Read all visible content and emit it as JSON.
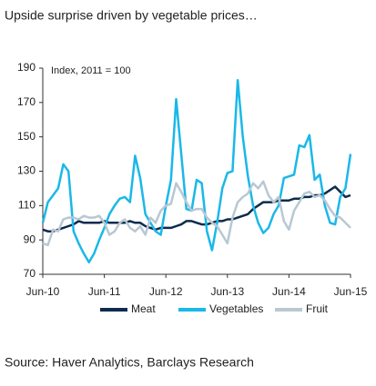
{
  "chart_data": {
    "type": "line",
    "title": "Upside surprise driven by vegetable prices…",
    "annotation": "Index, 2011 = 100",
    "source": "Source: Haver Analytics, Barclays Research",
    "categories": [
      "Jun-10",
      null,
      null,
      null,
      null,
      null,
      null,
      null,
      null,
      null,
      null,
      null,
      "Jun-11",
      null,
      null,
      null,
      null,
      null,
      null,
      null,
      null,
      null,
      null,
      null,
      "Jun-12",
      null,
      null,
      null,
      null,
      null,
      null,
      null,
      null,
      null,
      null,
      null,
      "Jun-13",
      null,
      null,
      null,
      null,
      null,
      null,
      null,
      null,
      null,
      null,
      null,
      "Jun-14",
      null,
      null,
      null,
      null,
      null,
      null,
      null,
      null,
      null,
      null,
      null,
      "Jun-15"
    ],
    "series": [
      {
        "name": "Meat",
        "color": "#0d2b4e",
        "values": [
          96,
          95,
          95,
          96,
          97,
          98,
          99,
          101,
          100,
          100,
          100,
          100,
          101,
          100,
          100,
          100,
          100,
          101,
          100,
          100,
          98,
          97,
          96,
          97,
          97,
          97,
          98,
          99,
          101,
          101,
          100,
          99,
          99,
          100,
          101,
          101,
          102,
          102,
          103,
          104,
          105,
          108,
          110,
          112,
          112,
          112,
          113,
          113,
          113,
          114,
          114,
          115,
          115,
          116,
          116,
          117,
          119,
          121,
          118,
          115,
          116
        ]
      },
      {
        "name": "Vegetables",
        "color": "#1ab8e8",
        "values": [
          100,
          112,
          116,
          120,
          134,
          130,
          95,
          88,
          82,
          77,
          82,
          90,
          97,
          105,
          110,
          114,
          115,
          112,
          139,
          126,
          105,
          100,
          95,
          93,
          110,
          125,
          172,
          140,
          108,
          107,
          125,
          123,
          95,
          84,
          100,
          120,
          129,
          130,
          183,
          150,
          127,
          110,
          100,
          94,
          97,
          105,
          110,
          126,
          127,
          128,
          145,
          144,
          151,
          125,
          128,
          110,
          100,
          99,
          115,
          120,
          140
        ]
      },
      {
        "name": "Fruit",
        "color": "#b8c8d3",
        "values": [
          88,
          87,
          96,
          95,
          102,
          103,
          103,
          102,
          104,
          103,
          103,
          104,
          100,
          93,
          95,
          100,
          102,
          97,
          95,
          98,
          93,
          103,
          100,
          107,
          110,
          111,
          123,
          118,
          112,
          107,
          108,
          108,
          103,
          100,
          98,
          93,
          88,
          103,
          112,
          115,
          117,
          123,
          120,
          124,
          116,
          112,
          115,
          101,
          96,
          107,
          112,
          117,
          118,
          115,
          116,
          113,
          108,
          104,
          103,
          100,
          97
        ]
      }
    ],
    "ylim": [
      70,
      190
    ],
    "yticks": [
      70,
      90,
      110,
      130,
      150,
      170,
      190
    ],
    "grid": false,
    "legend": "bottom"
  }
}
